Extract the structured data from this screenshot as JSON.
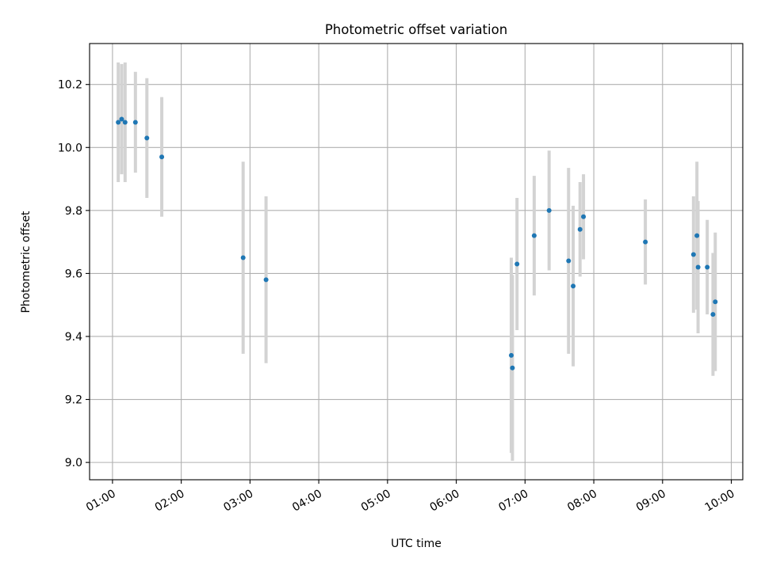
{
  "chart_data": {
    "type": "scatter",
    "title": "Photometric offset variation",
    "xlabel": "UTC time",
    "ylabel": "Photometric offset",
    "x_axis": {
      "type": "time",
      "range": [
        "00:40",
        "10:10"
      ],
      "ticks": [
        "01:00",
        "02:00",
        "03:00",
        "04:00",
        "05:00",
        "06:00",
        "07:00",
        "08:00",
        "09:00",
        "10:00"
      ],
      "tick_label_rotation": "slanted"
    },
    "y_axis": {
      "range": [
        8.945,
        10.33
      ],
      "ticks": [
        9.0,
        9.2,
        9.4,
        9.6,
        9.8,
        10.0,
        10.2
      ]
    },
    "grid": true,
    "errorbar_color": "#d3d3d3",
    "point_color": "#1f77b4",
    "points": [
      {
        "x": "01:05",
        "y": 10.08,
        "yerr": 0.19
      },
      {
        "x": "01:08",
        "y": 10.09,
        "yerr": 0.175
      },
      {
        "x": "01:11",
        "y": 10.08,
        "yerr": 0.19
      },
      {
        "x": "01:20",
        "y": 10.08,
        "yerr": 0.16
      },
      {
        "x": "01:30",
        "y": 10.03,
        "yerr": 0.19
      },
      {
        "x": "01:43",
        "y": 9.97,
        "yerr": 0.19
      },
      {
        "x": "02:54",
        "y": 9.65,
        "yerr": 0.305
      },
      {
        "x": "03:14",
        "y": 9.58,
        "yerr": 0.265
      },
      {
        "x": "06:48",
        "y": 9.34,
        "yerr": 0.31
      },
      {
        "x": "06:49",
        "y": 9.3,
        "yerr": 0.295
      },
      {
        "x": "06:53",
        "y": 9.63,
        "yerr": 0.21
      },
      {
        "x": "07:08",
        "y": 9.72,
        "yerr": 0.19
      },
      {
        "x": "07:21",
        "y": 9.8,
        "yerr": 0.19
      },
      {
        "x": "07:38",
        "y": 9.64,
        "yerr": 0.295
      },
      {
        "x": "07:42",
        "y": 9.56,
        "yerr": 0.255
      },
      {
        "x": "07:48",
        "y": 9.74,
        "yerr": 0.15
      },
      {
        "x": "07:51",
        "y": 9.78,
        "yerr": 0.135
      },
      {
        "x": "08:45",
        "y": 9.7,
        "yerr": 0.135
      },
      {
        "x": "09:27",
        "y": 9.66,
        "yerr": 0.185
      },
      {
        "x": "09:30",
        "y": 9.72,
        "yerr": 0.235
      },
      {
        "x": "09:31",
        "y": 9.62,
        "yerr": 0.21
      },
      {
        "x": "09:39",
        "y": 9.62,
        "yerr": 0.15
      },
      {
        "x": "09:44",
        "y": 9.47,
        "yerr": 0.195
      },
      {
        "x": "09:46",
        "y": 9.51,
        "yerr": 0.22
      }
    ]
  }
}
